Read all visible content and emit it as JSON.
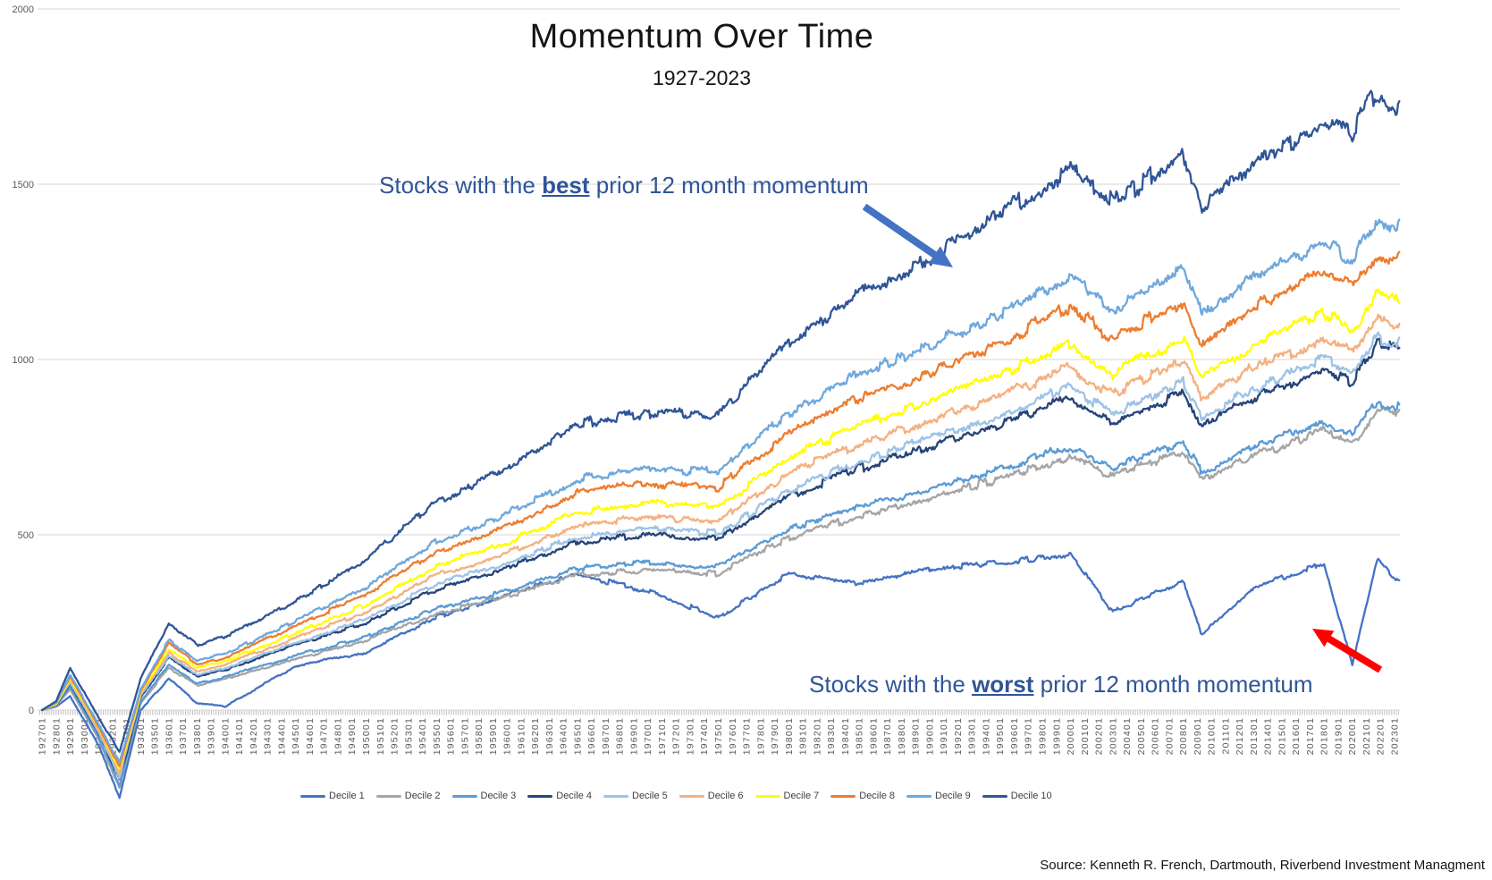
{
  "title": "Momentum Over Time",
  "subtitle": "1927-2023",
  "source": "Source: Kenneth R. French, Dartmouth, Riverbend Investment Managment",
  "annotations": {
    "best": {
      "prefix": "Stocks with the ",
      "keyword": "best",
      "suffix": " prior 12 month momentum"
    },
    "worst": {
      "prefix": "Stocks with the ",
      "keyword": "worst",
      "suffix": " prior 12 month momentum"
    },
    "text_color": "#2F5597",
    "best_arrow_color": "#4472C4",
    "worst_arrow_color": "#FF0000"
  },
  "chart_data": {
    "type": "line",
    "title": "Momentum Over Time",
    "subtitle": "1927-2023",
    "xlabel": "",
    "ylabel": "",
    "grid": true,
    "legend_position": "bottom",
    "ylim": [
      -300,
      2000
    ],
    "y_ticks": [
      0,
      500,
      1000,
      1500,
      2000
    ],
    "x_tick_labels": [
      "192701",
      "192801",
      "192901",
      "193001",
      "193101",
      "193201",
      "193301",
      "193401",
      "193501",
      "193601",
      "193701",
      "193801",
      "193901",
      "194001",
      "194101",
      "194201",
      "194301",
      "194401",
      "194501",
      "194601",
      "194701",
      "194801",
      "194901",
      "195001",
      "195101",
      "195201",
      "195301",
      "195401",
      "195501",
      "195601",
      "195701",
      "195801",
      "195901",
      "196001",
      "196101",
      "196201",
      "196301",
      "196401",
      "196501",
      "196601",
      "196701",
      "196801",
      "196901",
      "197001",
      "197101",
      "197201",
      "197301",
      "197401",
      "197501",
      "197601",
      "197701",
      "197801",
      "197901",
      "198001",
      "198101",
      "198201",
      "198301",
      "198401",
      "198501",
      "198601",
      "198701",
      "198801",
      "198901",
      "199001",
      "199101",
      "199201",
      "199301",
      "199401",
      "199501",
      "199601",
      "199701",
      "199801",
      "199901",
      "200001",
      "200101",
      "200201",
      "200301",
      "200401",
      "200501",
      "200601",
      "200701",
      "200801",
      "200901",
      "201001",
      "201101",
      "201201",
      "201301",
      "201401",
      "201501",
      "201601",
      "201701",
      "201801",
      "201901",
      "202001",
      "202101",
      "202201",
      "202301"
    ],
    "x": [
      1927,
      1928,
      1929,
      1931,
      1932.5,
      1934,
      1936,
      1938,
      1940,
      1945,
      1950,
      1955,
      1960,
      1965,
      1970,
      1975,
      1980,
      1985,
      1990,
      1995,
      2000,
      2003,
      2008,
      2009.3,
      2013,
      2018,
      2020,
      2021.8,
      2023
    ],
    "series": [
      {
        "name": "Decile 1",
        "color": "#4472C4",
        "values": [
          0,
          10,
          40,
          -100,
          -250,
          0,
          90,
          20,
          10,
          125,
          165,
          265,
          330,
          385,
          340,
          265,
          390,
          360,
          400,
          420,
          445,
          280,
          370,
          215,
          350,
          420,
          130,
          430,
          375
        ]
      },
      {
        "name": "Decile 2",
        "color": "#A5A5A5",
        "values": [
          0,
          12,
          60,
          -80,
          -225,
          20,
          120,
          70,
          90,
          145,
          200,
          275,
          325,
          385,
          400,
          390,
          490,
          555,
          605,
          660,
          725,
          665,
          740,
          655,
          725,
          795,
          760,
          855,
          845
        ]
      },
      {
        "name": "Decile 3",
        "color": "#5B9BD5",
        "values": [
          0,
          14,
          65,
          -75,
          -215,
          25,
          130,
          75,
          95,
          155,
          210,
          290,
          340,
          405,
          420,
          410,
          515,
          580,
          630,
          685,
          755,
          690,
          765,
          680,
          750,
          820,
          785,
          880,
          870
        ]
      },
      {
        "name": "Decile 4",
        "color": "#264478",
        "values": [
          0,
          15,
          75,
          -65,
          -200,
          35,
          150,
          95,
          115,
          185,
          250,
          345,
          405,
          480,
          500,
          490,
          610,
          690,
          750,
          815,
          895,
          820,
          910,
          810,
          890,
          975,
          935,
          1040,
          1030
        ]
      },
      {
        "name": "Decile 5",
        "color": "#9DC3E6",
        "values": [
          0,
          16,
          80,
          -60,
          -190,
          40,
          155,
          100,
          120,
          190,
          260,
          360,
          420,
          495,
          515,
          505,
          630,
          710,
          775,
          840,
          920,
          845,
          935,
          835,
          915,
          1000,
          960,
          1060,
          1050
        ]
      },
      {
        "name": "Decile 6",
        "color": "#F4B183",
        "values": [
          0,
          17,
          85,
          -55,
          -180,
          45,
          165,
          110,
          130,
          205,
          280,
          385,
          450,
          530,
          550,
          540,
          675,
          760,
          825,
          895,
          980,
          900,
          995,
          890,
          975,
          1060,
          1020,
          1115,
          1100
        ]
      },
      {
        "name": "Decile 7",
        "color": "#FFFF00",
        "values": [
          0,
          18,
          90,
          -50,
          -170,
          50,
          175,
          120,
          140,
          220,
          300,
          410,
          480,
          565,
          590,
          580,
          720,
          810,
          880,
          955,
          1045,
          960,
          1060,
          950,
          1040,
          1130,
          1090,
          1185,
          1170
        ]
      },
      {
        "name": "Decile 8",
        "color": "#ED7D31",
        "values": [
          0,
          20,
          95,
          -45,
          -160,
          55,
          190,
          130,
          150,
          240,
          330,
          450,
          525,
          620,
          645,
          635,
          790,
          890,
          965,
          1050,
          1150,
          1060,
          1165,
          1050,
          1150,
          1245,
          1205,
          1300,
          1290
        ]
      },
      {
        "name": "Decile 9",
        "color": "#6FA8DC",
        "values": [
          0,
          22,
          100,
          -40,
          -150,
          60,
          200,
          140,
          160,
          255,
          350,
          480,
          560,
          660,
          690,
          680,
          850,
          960,
          1040,
          1130,
          1235,
          1140,
          1255,
          1130,
          1230,
          1330,
          1290,
          1395,
          1380
        ]
      },
      {
        "name": "Decile 10",
        "color": "#2F5597",
        "values": [
          0,
          25,
          120,
          -20,
          -120,
          90,
          250,
          185,
          210,
          310,
          430,
          595,
          690,
          815,
          850,
          840,
          1055,
          1185,
          1285,
          1415,
          1540,
          1450,
          1580,
          1440,
          1560,
          1680,
          1645,
          1770,
          1720
        ]
      }
    ]
  }
}
